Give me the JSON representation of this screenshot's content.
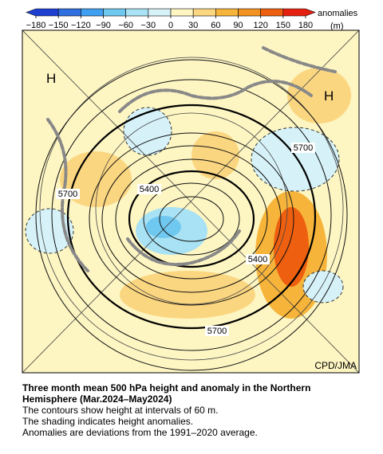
{
  "colorbar": {
    "lim": [
      -180,
      180
    ],
    "ticks": [
      {
        "value": -180,
        "label": "−180"
      },
      {
        "value": -150,
        "label": "−150"
      },
      {
        "value": -120,
        "label": "−120"
      },
      {
        "value": -90,
        "label": "−90"
      },
      {
        "value": -60,
        "label": "−60"
      },
      {
        "value": -30,
        "label": "−30"
      },
      0,
      30,
      60,
      90,
      120,
      150,
      180
    ],
    "colors": [
      "#1f3fd0",
      "#2f6fe0",
      "#3f9ff0",
      "#6fc8f0",
      "#a8e2f4",
      "#d6f2f8",
      "#fdf5c2",
      "#fbd680",
      "#f6b43a",
      "#f29220",
      "#ee6010",
      "#e42010"
    ],
    "label": "anomalies",
    "unit": "(m)"
  },
  "map": {
    "highs": [
      "H",
      "H"
    ],
    "contour_labels": [
      "5700",
      "5400",
      "5400",
      "5700",
      "5700"
    ],
    "credit": "CPD/JMA"
  },
  "caption": {
    "title_lines": [
      "Three month mean 500 hPa height and anomaly in the Northern",
      "Hemisphere (Mar.2024–May2024)"
    ],
    "lines": [
      "The contours show height at intervals of 60 m.",
      "The shading indicates height anomalies.",
      "Anomalies are deviations from the 1991–2020 average."
    ]
  }
}
